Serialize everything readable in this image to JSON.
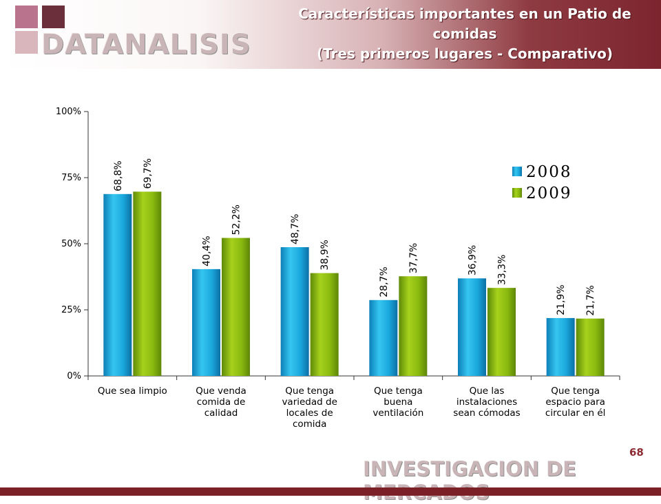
{
  "header": {
    "logo_text": "DATANALISIS",
    "logo_colors": [
      "#b9738d",
      "#6b2e3b",
      "#d9b6bc",
      "#e7d0c6"
    ],
    "title_lines": [
      "Características importantes en un Patio de",
      "comidas",
      "(Tres primeros lugares - Comparativo)"
    ]
  },
  "footer": {
    "page_number": "68",
    "brand_text": "INVESTIGACION DE MERCADOS",
    "bar_color": "#7c2028"
  },
  "chart_data": {
    "type": "bar",
    "categories": [
      [
        "Que sea limpio"
      ],
      [
        "Que venda",
        "comida de",
        "calidad"
      ],
      [
        "Que tenga",
        "variedad de",
        "locales de",
        "comida"
      ],
      [
        "Que tenga",
        "buena",
        "ventilación"
      ],
      [
        "Que las",
        "instalaciones",
        "sean cómodas"
      ],
      [
        "Que tenga",
        "espacio para",
        "circular en él"
      ]
    ],
    "series": [
      {
        "name": "2008",
        "color": "#1aa7dc",
        "values": [
          68.8,
          40.4,
          48.7,
          28.7,
          36.9,
          21.9
        ],
        "labels": [
          "68,8%",
          "40,4%",
          "48,7%",
          "28,7%",
          "36,9%",
          "21,9%"
        ]
      },
      {
        "name": "2009",
        "color": "#8ab90f",
        "values": [
          69.7,
          52.2,
          38.9,
          37.7,
          33.3,
          21.7
        ],
        "labels": [
          "69,7%",
          "52,2%",
          "38,9%",
          "37,7%",
          "33,3%",
          "21,7%"
        ]
      }
    ],
    "ylim": [
      0,
      100
    ],
    "yticks": [
      "0%",
      "25%",
      "50%",
      "75%",
      "100%"
    ],
    "ytick_values": [
      0,
      25,
      50,
      75,
      100
    ],
    "grid": false,
    "legend_position": "top-right"
  }
}
